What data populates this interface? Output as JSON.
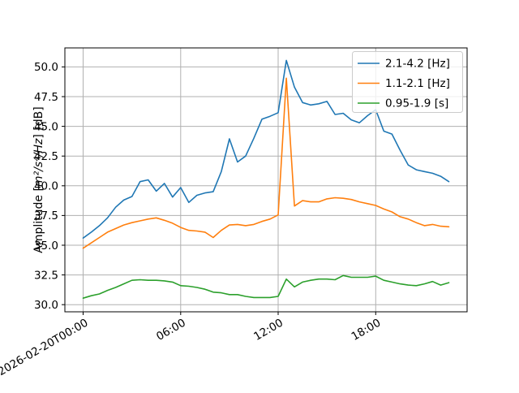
{
  "chart_data": {
    "type": "line",
    "title": "",
    "xlabel": "",
    "ylabel_prefix": "Amplitude [",
    "ylabel_math": "m²/s⁴/Hz",
    "ylabel_suffix": "] [dB]",
    "grid": true,
    "legend_position": "upper right",
    "xlim_hours": [
      -1.125,
      23.625
    ],
    "ylim": [
      29.4,
      51.6
    ],
    "x_date": "2026-02-20",
    "xticks": [
      {
        "hour": 0,
        "label": "2026-02-20T00:00"
      },
      {
        "hour": 6,
        "label": "06:00"
      },
      {
        "hour": 12,
        "label": "12:00"
      },
      {
        "hour": 18,
        "label": "18:00"
      }
    ],
    "yticks": [
      30.0,
      32.5,
      35.0,
      37.5,
      40.0,
      42.5,
      45.0,
      47.5,
      50.0
    ],
    "x_hours": [
      0,
      0.5,
      1,
      1.5,
      2,
      2.5,
      3,
      3.5,
      4,
      4.5,
      5,
      5.5,
      6,
      6.5,
      7,
      7.5,
      8,
      8.5,
      9,
      9.5,
      10,
      10.5,
      11,
      11.5,
      12,
      12.5,
      13,
      13.5,
      14,
      14.5,
      15,
      15.5,
      16,
      16.5,
      17,
      17.5,
      18,
      18.5,
      19,
      19.5,
      20,
      20.5,
      21,
      21.5,
      22,
      22.5
    ],
    "series": [
      {
        "name": "2.1-4.2 [Hz]",
        "color": "#1f77b4",
        "values": [
          35.6,
          36.1,
          36.65,
          37.3,
          38.2,
          38.8,
          39.1,
          40.35,
          40.5,
          39.55,
          40.2,
          39.05,
          39.85,
          38.6,
          39.2,
          39.4,
          39.5,
          41.2,
          43.95,
          42.0,
          42.5,
          44.0,
          45.6,
          45.85,
          46.15,
          50.55,
          48.3,
          47.0,
          46.8,
          46.9,
          47.1,
          46.0,
          46.1,
          45.55,
          45.3,
          45.9,
          46.4,
          44.6,
          44.35,
          43.0,
          41.75,
          41.35,
          41.2,
          41.05,
          40.8,
          40.35
        ]
      },
      {
        "name": "1.1-2.1 [Hz]",
        "color": "#ff7f0e",
        "values": [
          34.75,
          35.2,
          35.65,
          36.1,
          36.4,
          36.7,
          36.9,
          37.05,
          37.2,
          37.3,
          37.1,
          36.85,
          36.5,
          36.25,
          36.2,
          36.1,
          35.65,
          36.25,
          36.7,
          36.75,
          36.65,
          36.75,
          37.0,
          37.2,
          37.55,
          49.05,
          38.3,
          38.75,
          38.65,
          38.65,
          38.9,
          39.0,
          38.95,
          38.85,
          38.65,
          38.5,
          38.35,
          38.05,
          37.8,
          37.4,
          37.2,
          36.9,
          36.65,
          36.75,
          36.6,
          36.55
        ]
      },
      {
        "name": "0.95-1.9 [s]",
        "color": "#2ca02c",
        "values": [
          30.55,
          30.75,
          30.9,
          31.2,
          31.45,
          31.75,
          32.05,
          32.1,
          32.05,
          32.05,
          32.0,
          31.9,
          31.6,
          31.55,
          31.45,
          31.3,
          31.05,
          31.0,
          30.85,
          30.85,
          30.7,
          30.6,
          30.6,
          30.6,
          30.7,
          32.15,
          31.5,
          31.9,
          32.05,
          32.15,
          32.15,
          32.1,
          32.45,
          32.3,
          32.3,
          32.3,
          32.4,
          32.05,
          31.9,
          31.75,
          31.65,
          31.6,
          31.75,
          31.95,
          31.65,
          31.85
        ]
      }
    ],
    "style": {
      "grid_color": "#b0b0b0",
      "spine_color": "#000000",
      "legend_edge_color": "#cccccc",
      "background": "#ffffff"
    }
  }
}
